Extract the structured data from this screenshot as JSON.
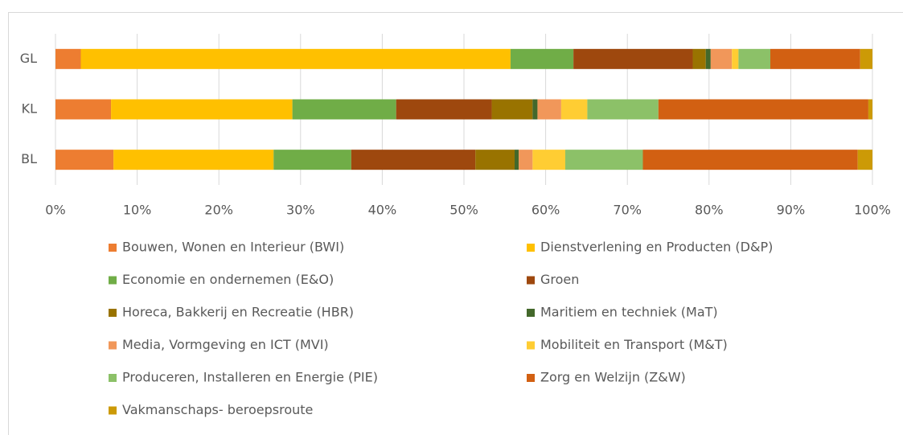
{
  "chart_data": {
    "type": "stacked-barh",
    "categories": [
      "GL",
      "KL",
      "BL"
    ],
    "xlim": [
      0,
      100
    ],
    "xticks": [
      {
        "value": 0,
        "label": "0%"
      },
      {
        "value": 10,
        "label": "10%"
      },
      {
        "value": 20,
        "label": "20%"
      },
      {
        "value": 30,
        "label": "30%"
      },
      {
        "value": 40,
        "label": "40%"
      },
      {
        "value": 50,
        "label": "50%"
      },
      {
        "value": 60,
        "label": "60%"
      },
      {
        "value": 70,
        "label": "70%"
      },
      {
        "value": 80,
        "label": "80%"
      },
      {
        "value": 90,
        "label": "90%"
      },
      {
        "value": 100,
        "label": "100%"
      }
    ],
    "grid": true,
    "series": [
      {
        "name": "Bouwen, Wonen en Interieur (BWI)",
        "color": "#ed7d31",
        "values": [
          3.1,
          6.8,
          7.1
        ]
      },
      {
        "name": "Dienstverlening en Producten (D&P)",
        "color": "#ffc000",
        "values": [
          52.6,
          22.2,
          19.6
        ]
      },
      {
        "name": "Economie en ondernemen (E&O)",
        "color": "#70ad47",
        "values": [
          7.7,
          12.7,
          9.5
        ]
      },
      {
        "name": "Groen",
        "color": "#9e480e",
        "values": [
          14.6,
          11.7,
          15.2
        ]
      },
      {
        "name": "Horeca, Bakkerij en Recreatie (HBR)",
        "color": "#997300",
        "values": [
          1.6,
          5.0,
          4.8
        ]
      },
      {
        "name": "Maritiem en techniek (MaT)",
        "color": "#43682b",
        "values": [
          0.6,
          0.6,
          0.5
        ]
      },
      {
        "name": "Media, Vormgeving en ICT (MVI)",
        "color": "#f1975a",
        "values": [
          2.6,
          2.9,
          1.7
        ]
      },
      {
        "name": "Mobiliteit en Transport (M&T)",
        "color": "#ffcd33",
        "values": [
          0.8,
          3.2,
          4.0
        ]
      },
      {
        "name": "Produceren, Installeren en Energie (PIE)",
        "color": "#8cc168",
        "values": [
          3.9,
          8.7,
          9.5
        ]
      },
      {
        "name": "Zorg en Welzijn (Z&W)",
        "color": "#d26012",
        "values": [
          11.0,
          25.7,
          26.3
        ]
      },
      {
        "name": "Vakmanschaps- beroepsroute",
        "color": "#cc9a06",
        "values": [
          1.5,
          0.5,
          1.8
        ]
      }
    ]
  }
}
